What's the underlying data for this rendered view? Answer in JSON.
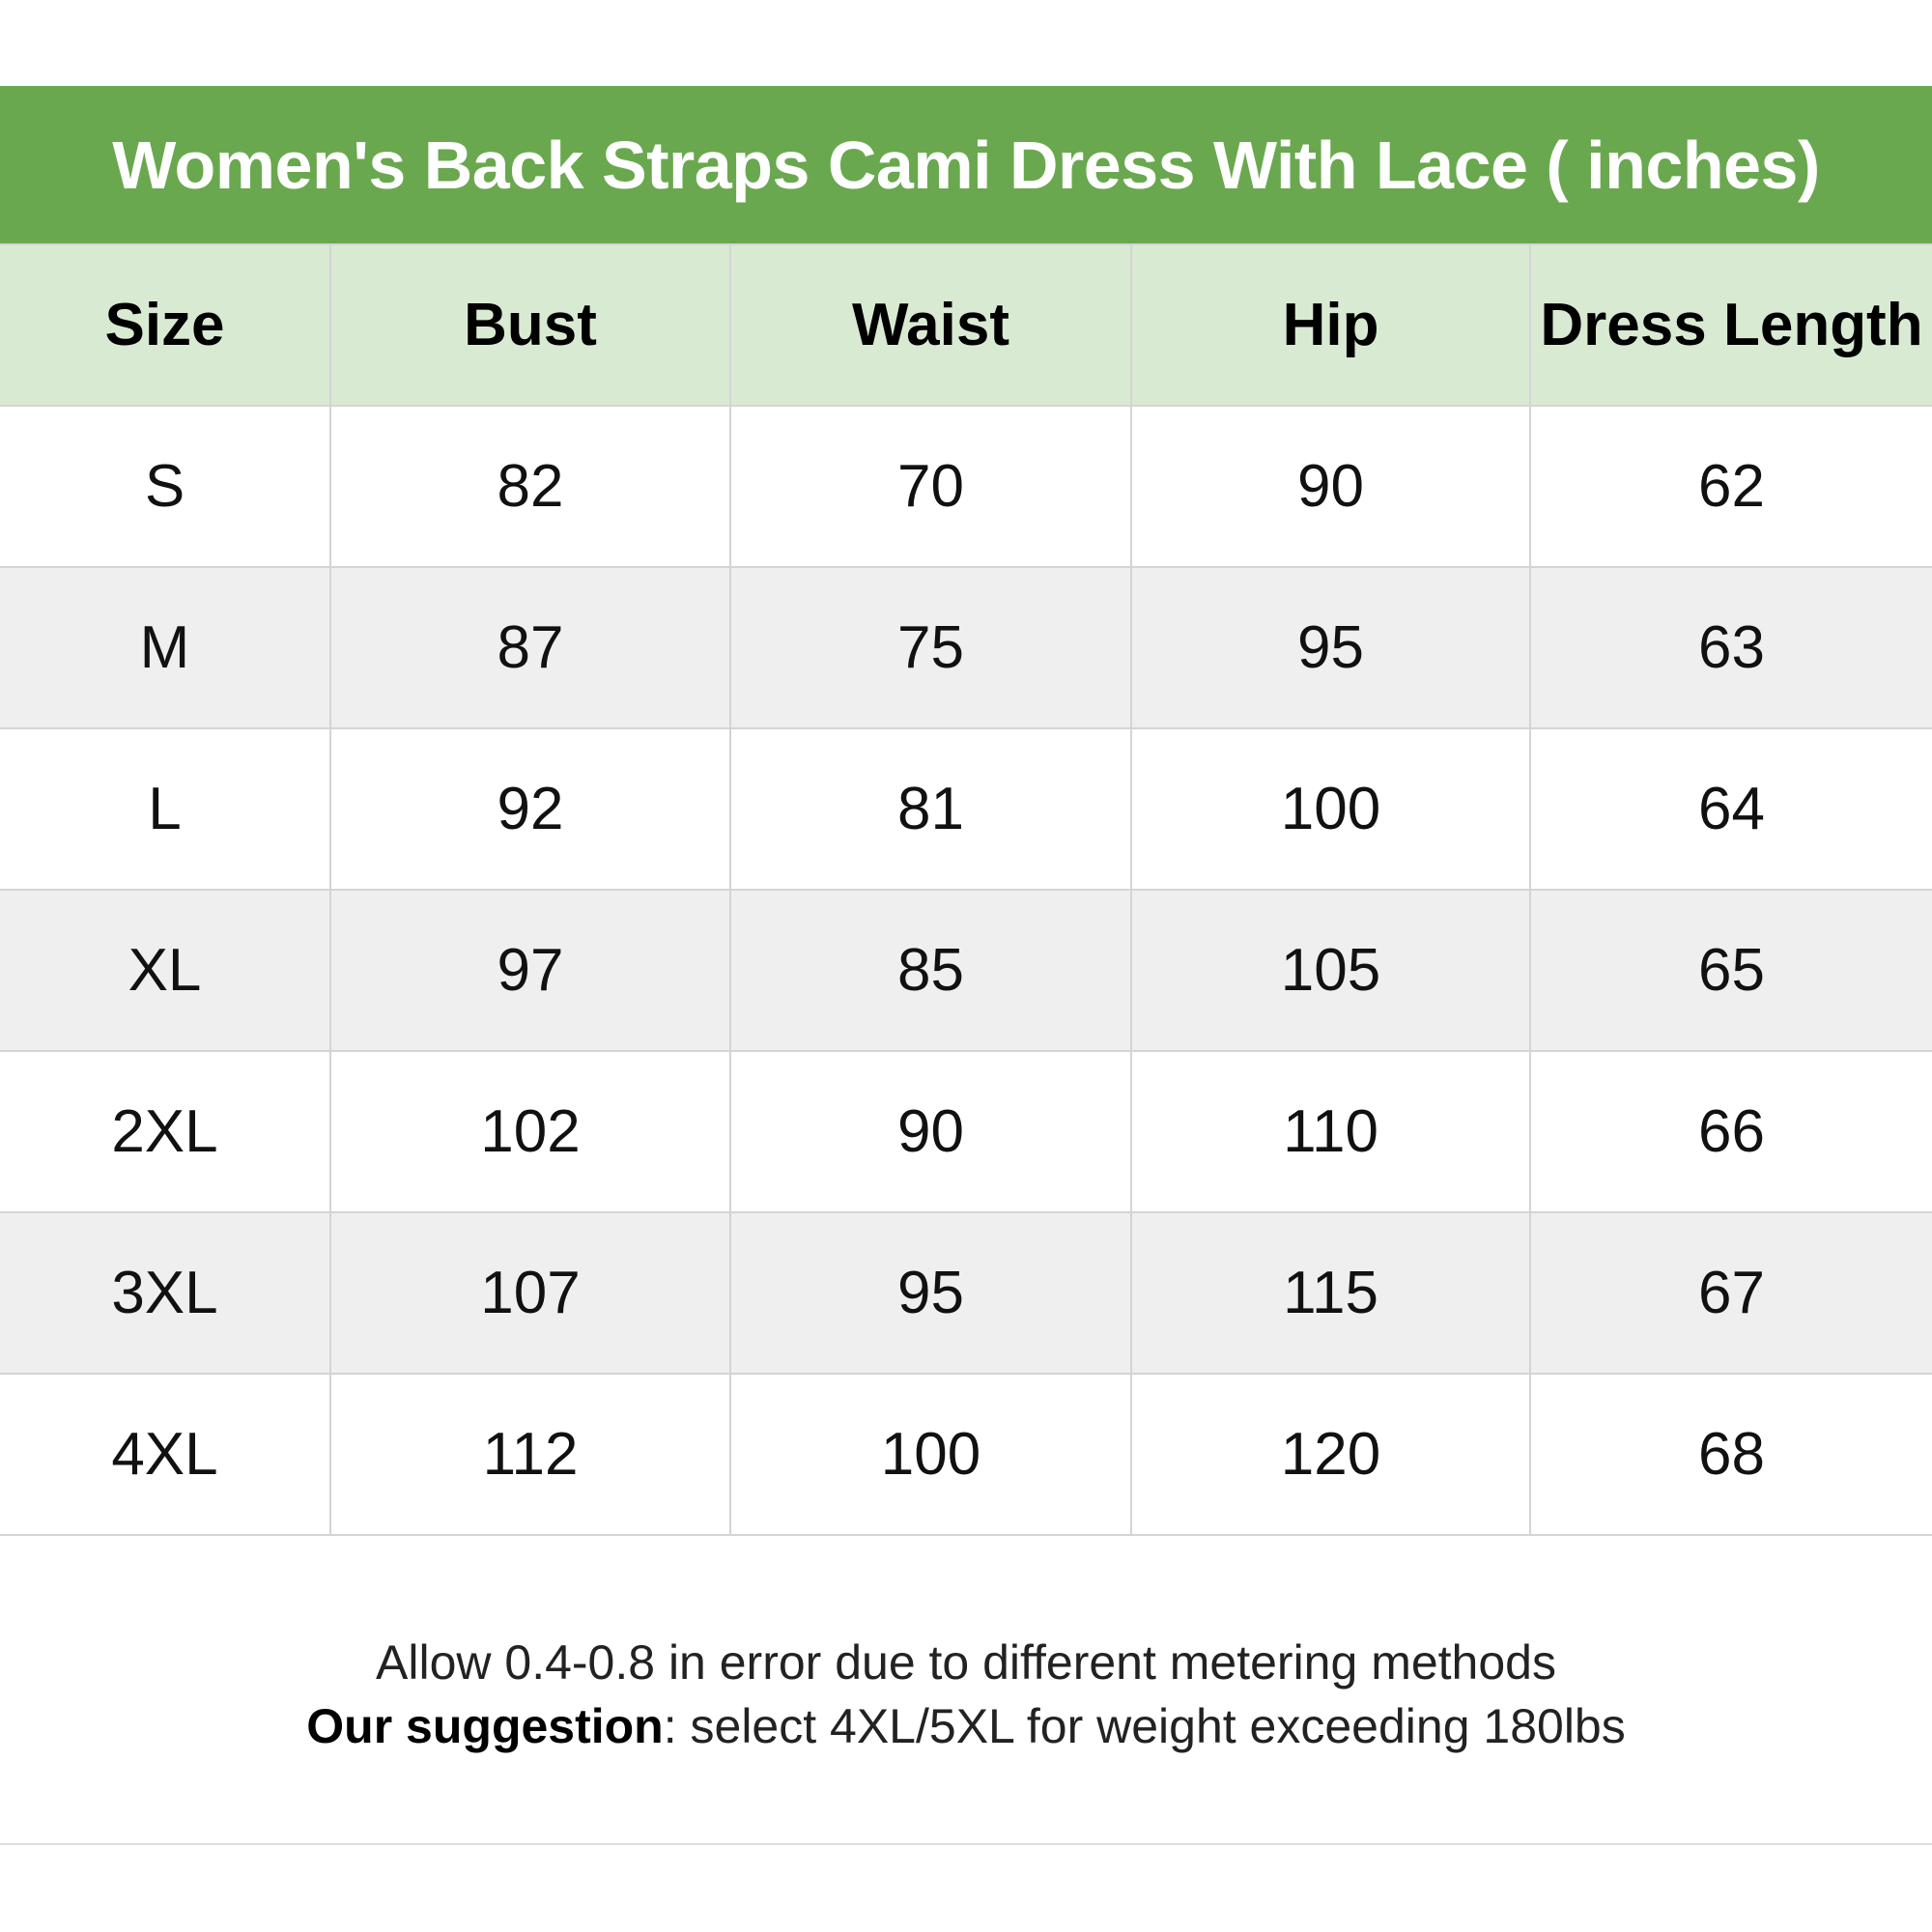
{
  "title": "Women's Back Straps Cami Dress With Lace ( inches)",
  "colors": {
    "title_bg": "#6aa84f",
    "header_bg": "#d9ead3",
    "alt_row_bg": "#efefef"
  },
  "table": {
    "headers": [
      "Size",
      "Bust",
      "Waist",
      "Hip",
      "Dress Length"
    ],
    "rows": [
      [
        "S",
        "82",
        "70",
        "90",
        "62"
      ],
      [
        "M",
        "87",
        "75",
        "95",
        "63"
      ],
      [
        "L",
        "92",
        "81",
        "100",
        "64"
      ],
      [
        "XL",
        "97",
        "85",
        "105",
        "65"
      ],
      [
        "2XL",
        "102",
        "90",
        "110",
        "66"
      ],
      [
        "3XL",
        "107",
        "95",
        "115",
        "67"
      ],
      [
        "4XL",
        "112",
        "100",
        "120",
        "68"
      ]
    ]
  },
  "footer": {
    "note": "Allow 0.4-0.8 in error due to different metering methods",
    "suggestion_label": "Our suggestion",
    "suggestion_text": ": select 4XL/5XL for weight exceeding 180lbs"
  }
}
